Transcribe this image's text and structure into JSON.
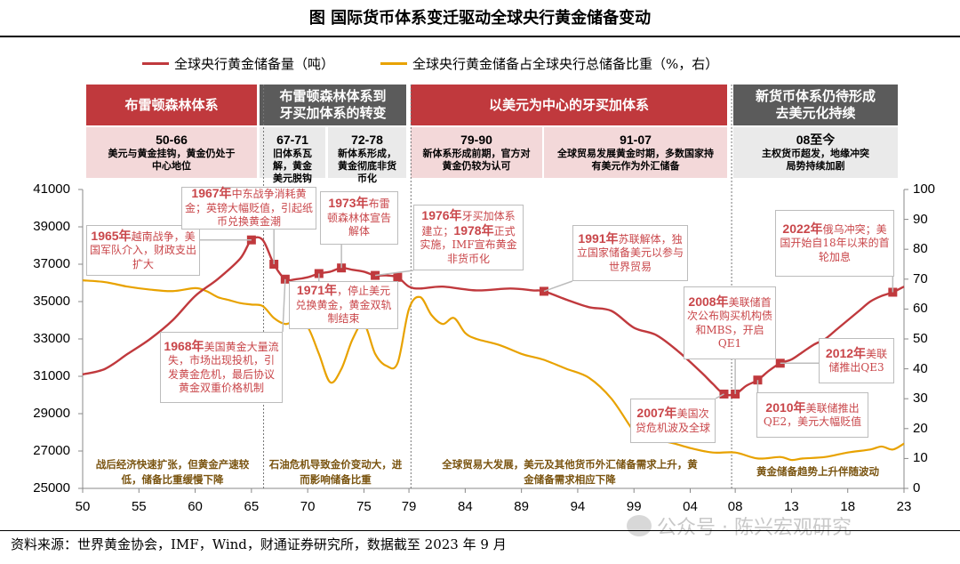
{
  "title": "图  国际货币体系变迁驱动全球央行黄金储备变动",
  "legend": [
    {
      "label": "全球央行黄金储备量（吨）",
      "color": "#c0393d"
    },
    {
      "label": "全球央行黄金储备占全球央行总储备比重（%，右）",
      "color": "#e8a200"
    }
  ],
  "periods": [
    "布雷顿森林体系",
    "布雷顿森林体系到牙买加体系的转变",
    "以美元为中心的牙买加体系",
    "新货币体系仍待形成去美元化持续"
  ],
  "subperiods": [
    {
      "years": "50-66",
      "text": "美元与黄金挂钩，黄金仍处于中心地位"
    },
    {
      "years": "67-71",
      "text": "旧体系瓦解，黄金美元脱钩"
    },
    {
      "years": "72-78",
      "text": "新体系形成，黄金彻底非货币化"
    },
    {
      "years": "79-90",
      "text": "新体系形成前期，官方对黄金仍较为认可"
    },
    {
      "years": "91-07",
      "text": "全球贸易发展黄金时期，多数国家持有美元作为外汇储备"
    },
    {
      "years": "08至今",
      "text": "主权货币超发，地缘冲突局势持续加剧"
    }
  ],
  "annotations": [
    {
      "year": 1965,
      "parts": [
        {
          "b": 1,
          "t": "1965年"
        },
        {
          "t": "越南战争，美国军队介入，财政支出扩大"
        }
      ]
    },
    {
      "year": 1967,
      "parts": [
        {
          "b": 1,
          "t": "1967年"
        },
        {
          "t": "中东战争消耗黄金；英镑大幅贬值，引起纸币兑换黄金潮"
        }
      ]
    },
    {
      "year": 1973,
      "parts": [
        {
          "b": 1,
          "t": "1973年"
        },
        {
          "t": "布雷顿森林体宣告解体"
        }
      ]
    },
    {
      "year": 1971,
      "parts": [
        {
          "b": 1,
          "t": "1971年"
        },
        {
          "t": "，停止美元兑换黄金，黄金双轨制结束"
        }
      ]
    },
    {
      "year": 1968,
      "parts": [
        {
          "b": 1,
          "t": "1968年"
        },
        {
          "t": "美国黄金大量流失，市场出现投机，引发黄金危机，最后协议黄金双重价格机制"
        }
      ]
    },
    {
      "year": 1976,
      "parts": [
        {
          "b": 1,
          "t": "1976年"
        },
        {
          "t": "牙买加体系建立；"
        },
        {
          "b": 1,
          "t": "1978年"
        },
        {
          "t": "正式实施，IMF宣布黄金非货币化"
        }
      ]
    },
    {
      "year": 1991,
      "parts": [
        {
          "b": 1,
          "t": "1991年"
        },
        {
          "t": "苏联解体，独立国家储备美元以参与世界贸易"
        }
      ]
    },
    {
      "year": 2008,
      "parts": [
        {
          "b": 1,
          "t": "2008年"
        },
        {
          "t": "美联储首次公布购买机构债和MBS，开启QE1"
        }
      ]
    },
    {
      "year": 2007,
      "parts": [
        {
          "b": 1,
          "t": "2007年"
        },
        {
          "t": "美国次贷危机波及全球"
        }
      ]
    },
    {
      "year": 2010,
      "parts": [
        {
          "b": 1,
          "t": "2010年"
        },
        {
          "t": "美联储推出QE2，美元大幅贬值"
        }
      ]
    },
    {
      "year": 2012,
      "parts": [
        {
          "b": 1,
          "t": "2012年"
        },
        {
          "t": "美联储推出QE3"
        }
      ]
    },
    {
      "year": 2022,
      "parts": [
        {
          "b": 1,
          "t": "2022年"
        },
        {
          "t": "俄乌冲突；美国开始自18年以来的首轮加息"
        }
      ]
    }
  ],
  "phase_notes": [
    "战后经济快速扩张，但黄金产速较低，储备比重缓慢下降",
    "石油危机导致金价变动大，进而影响储备比重",
    "全球贸易大发展，美元及其他货币外汇储备需求上升，黄金储备需求相应下降",
    "黄金储备趋势上升伴随波动"
  ],
  "source": "资料来源：世界黄金协会，IMF，Wind，财通证券研究所，数据截至 2023 年 9 月",
  "watermark": "公众号 · 陈兴宏观研究",
  "chart_data": {
    "type": "line",
    "x_tick_labels": [
      "50",
      "55",
      "60",
      "65",
      "70",
      "75",
      "79",
      "84",
      "89",
      "94",
      "99",
      "04",
      "08",
      "13",
      "18",
      "23"
    ],
    "x_ticks": [
      1950,
      1955,
      1960,
      1965,
      1970,
      1975,
      1979,
      1984,
      1989,
      1994,
      1999,
      2004,
      2008,
      2013,
      2018,
      2023
    ],
    "xlim": [
      1950,
      2023
    ],
    "y_left": {
      "ticks": [
        "41000",
        "39000",
        "37000",
        "35000",
        "33000",
        "31000",
        "29000",
        "27000",
        "25000"
      ],
      "lim": [
        25000,
        41000
      ]
    },
    "y_right": {
      "ticks": [
        "100",
        "90",
        "80",
        "70",
        "60",
        "50",
        "40",
        "30",
        "20",
        "10",
        "0"
      ],
      "lim": [
        0,
        100
      ]
    },
    "series": [
      {
        "name": "全球央行黄金储备量（吨）",
        "axis": "left",
        "color": "#c0393d",
        "x": [
          1950,
          1952,
          1954,
          1956,
          1958,
          1960,
          1962,
          1964,
          1965,
          1966,
          1967,
          1968,
          1969,
          1970,
          1971,
          1972,
          1973,
          1974,
          1975,
          1976,
          1977,
          1978,
          1979,
          1980,
          1982,
          1985,
          1988,
          1990,
          1991,
          1993,
          1995,
          1997,
          1999,
          2001,
          2003,
          2005,
          2006,
          2007,
          2008,
          2009,
          2010,
          2011,
          2012,
          2013,
          2014,
          2015,
          2016,
          2017,
          2018,
          2019,
          2020,
          2021,
          2022,
          2023
        ],
        "y": [
          31100,
          31400,
          32200,
          33000,
          34000,
          35300,
          36200,
          37300,
          38300,
          38300,
          37000,
          36200,
          36200,
          36300,
          36500,
          36600,
          36800,
          36700,
          36600,
          36400,
          36400,
          36300,
          35800,
          35700,
          35800,
          35600,
          35700,
          35600,
          35550,
          35100,
          34700,
          34500,
          33600,
          33200,
          32300,
          31200,
          30600,
          30050,
          30050,
          30500,
          30800,
          31300,
          31700,
          31900,
          32300,
          32700,
          33000,
          33500,
          34000,
          34500,
          35000,
          35300,
          35500,
          35800
        ],
        "markers": [
          1965,
          1967,
          1968,
          1971,
          1973,
          1976,
          1978,
          1991,
          2007,
          2008,
          2010,
          2012,
          2022
        ]
      },
      {
        "name": "全球央行黄金储备占全球央行总储备比重（%，右）",
        "axis": "right",
        "color": "#e8a200",
        "x": [
          1950,
          1952,
          1954,
          1956,
          1958,
          1960,
          1961,
          1962,
          1963,
          1964,
          1965,
          1966,
          1967,
          1968,
          1969,
          1970,
          1971,
          1972,
          1973,
          1974,
          1975,
          1976,
          1977,
          1978,
          1979,
          1980,
          1981,
          1982,
          1983,
          1984,
          1985,
          1987,
          1989,
          1990,
          1991,
          1993,
          1995,
          1997,
          1999,
          2000,
          2002,
          2004,
          2006,
          2008,
          2010,
          2012,
          2013,
          2014,
          2016,
          2018,
          2020,
          2021,
          2022,
          2023
        ],
        "y": [
          69.6,
          69,
          67.5,
          66.5,
          66,
          67,
          66,
          64,
          63,
          62,
          61.5,
          61,
          57,
          55,
          56,
          54,
          45,
          35.5,
          40,
          50,
          55,
          45,
          41,
          42,
          60,
          64,
          58,
          55,
          57,
          52,
          50,
          48,
          45,
          44,
          43,
          40,
          37,
          30,
          19,
          16,
          15.5,
          13.5,
          12,
          12,
          10,
          10.5,
          9.5,
          10,
          10.5,
          12,
          13,
          14,
          13,
          15
        ]
      }
    ]
  }
}
